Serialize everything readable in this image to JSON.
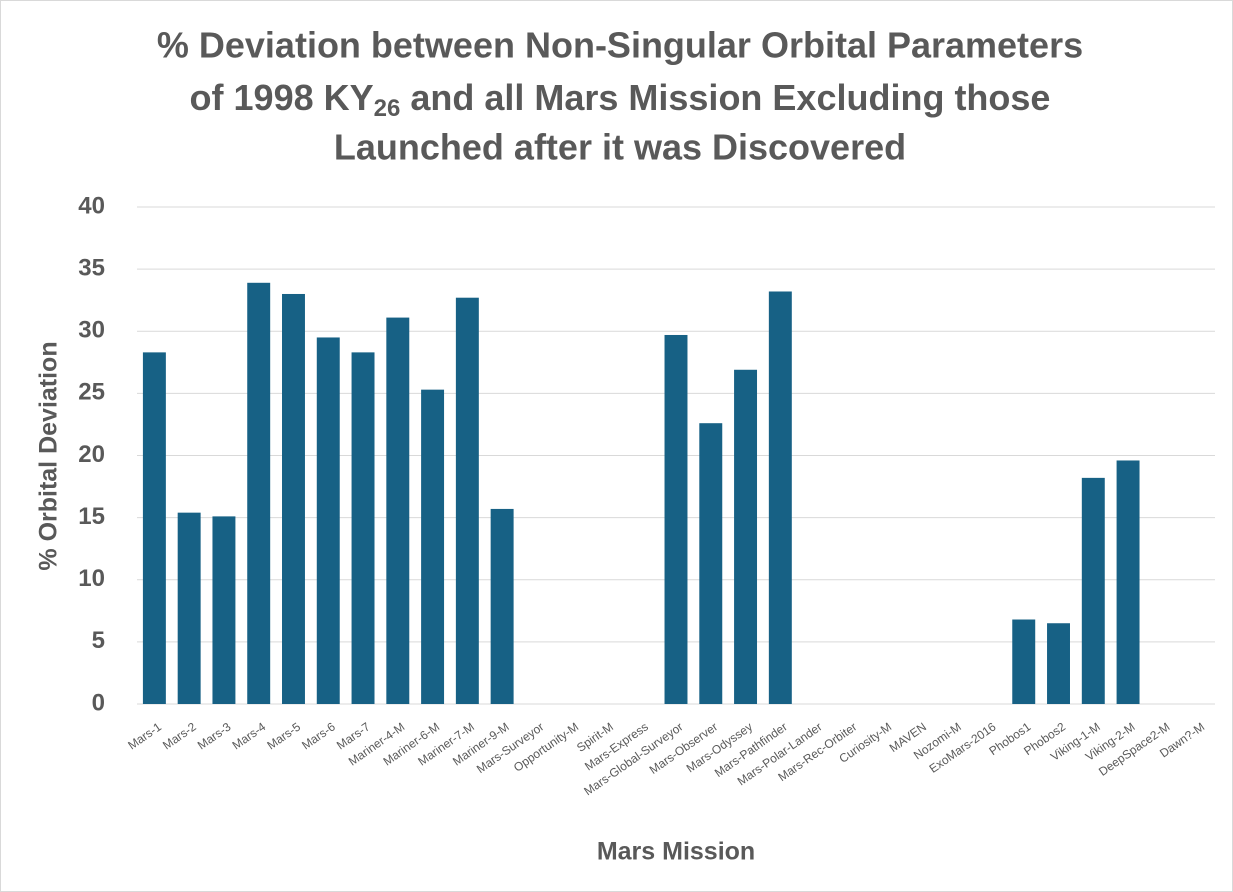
{
  "chart_data": {
    "type": "bar",
    "title": [
      "% Deviation between Non-Singular Orbital Parameters",
      "of 1998 KY",
      "26",
      "and all Mars Mission Excluding those",
      "Launched after it was Discovered"
    ],
    "x_label": "Mars Mission",
    "y_label": "% Orbital Deviation",
    "categories": [
      "Mars-1",
      "Mars-2",
      "Mars-3",
      "Mars-4",
      "Mars-5",
      "Mars-6",
      "Mars-7",
      "Mariner-4-M",
      "Mariner-6-M",
      "Mariner-7-M",
      "Mariner-9-M",
      "Mars-Surveyor",
      "Opportunity-M",
      "Spirit-M",
      "Mars-Express",
      "Mars-Global-Surveyor",
      "Mars-Observer",
      "Mars-Odyssey",
      "Mars-Pathfinder",
      "Mars-Polar-Lander",
      "Mars-Rec-Orbiter",
      "Curiosity-M",
      "MAVEN",
      "Nozomi-M",
      "ExoMars-2016",
      "Phobos1",
      "Phobos2",
      "Viking-1-M",
      "Viking-2-M",
      "DeepSpace2-M",
      "Dawn?-M"
    ],
    "values": [
      28.3,
      15.4,
      15.1,
      33.9,
      33.0,
      29.5,
      28.3,
      31.1,
      25.3,
      32.7,
      15.7,
      null,
      null,
      null,
      null,
      29.7,
      22.6,
      26.9,
      33.2,
      null,
      null,
      null,
      null,
      null,
      null,
      6.8,
      6.5,
      18.2,
      19.6,
      null,
      null
    ],
    "color": "#176185",
    "ylim": [
      0,
      40
    ],
    "yticks": [
      0,
      5,
      10,
      15,
      20,
      25,
      30,
      35,
      40
    ],
    "grid": true
  }
}
